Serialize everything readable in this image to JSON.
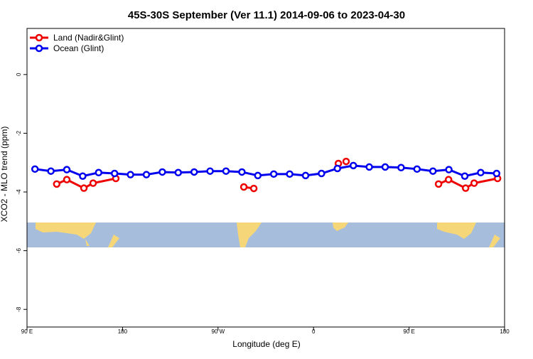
{
  "chart_data": {
    "type": "line",
    "title": "45S-30S September (Ver 11.1)   2014-09-06 to 2023-04-30",
    "x_label": "Longitude (deg E)",
    "y_label": "XCO2 - MLO trend (ppm)",
    "xlim": [
      90,
      540
    ],
    "ylim": [
      1.57,
      -8.6
    ],
    "xticks": [
      {
        "value": 90,
        "label": "90 E"
      },
      180,
      {
        "value": 270,
        "label": "90 W"
      },
      {
        "value": 360,
        "label": "0"
      },
      {
        "value": 450,
        "label": "90 E"
      },
      {
        "value": 540,
        "label": "180"
      }
    ],
    "yticks": [
      0,
      -2,
      -4,
      -6,
      -8
    ],
    "legend": "top-left",
    "series": [
      {
        "name": "Land (Nadir&Glint)",
        "color": "#ee0000",
        "x": [
          118,
          127.5,
          143.6,
          152.3,
          173.7,
          null,
          294.3,
          303.7,
          null,
          383.4,
          null,
          390.7,
          null,
          477.8,
          487.2,
          503.3,
          511.3,
          533.4
        ],
        "values": [
          -3.73,
          -3.58,
          -3.87,
          -3.7,
          -3.54,
          null,
          -3.83,
          -3.88,
          null,
          -3.03,
          null,
          -2.96,
          null,
          -3.73,
          -3.58,
          -3.87,
          -3.7,
          -3.54
        ]
      },
      {
        "name": "Ocean (Glint)",
        "color": "#0000ee",
        "x": [
          97.5,
          112.5,
          127.5,
          142.5,
          157.5,
          172.5,
          187.5,
          202.5,
          217.5,
          232.5,
          247.5,
          262.5,
          277.5,
          292.5,
          307.5,
          322.5,
          337.5,
          352.5,
          367.5,
          382.5,
          397.5,
          412.5,
          427.5,
          442.5,
          457.5,
          472.5,
          487.5,
          502.5,
          517.5,
          532.5
        ],
        "values": [
          -3.22,
          -3.29,
          -3.24,
          -3.46,
          -3.34,
          -3.37,
          -3.41,
          -3.41,
          -3.32,
          -3.34,
          -3.32,
          -3.29,
          -3.29,
          -3.32,
          -3.44,
          -3.39,
          -3.39,
          -3.44,
          -3.37,
          -3.2,
          -3.1,
          -3.15,
          -3.15,
          -3.17,
          -3.22,
          -3.29,
          -3.24,
          -3.46,
          -3.34,
          -3.37
        ]
      }
    ]
  }
}
